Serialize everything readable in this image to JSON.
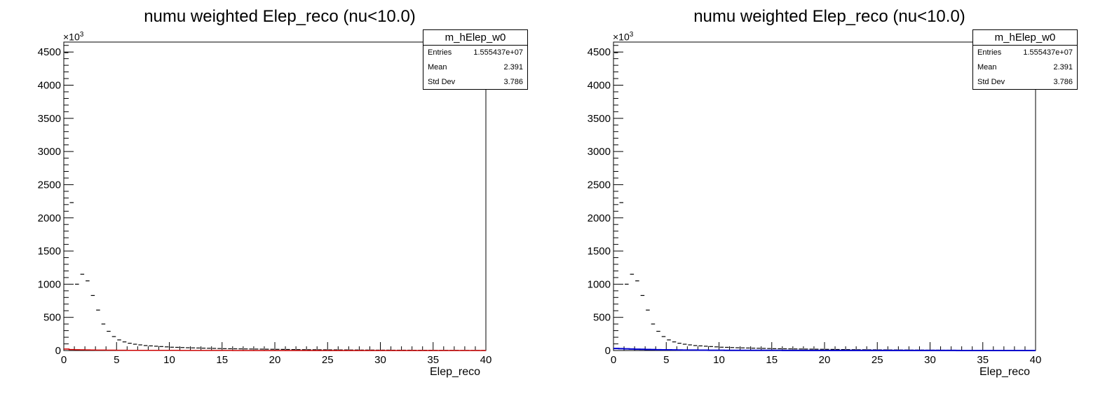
{
  "colors": {
    "frame": "#000000",
    "hist_main": "#000000",
    "overlay_left": "#cc0000",
    "overlay_right": "#0000cc"
  },
  "chart_data": [
    {
      "type": "histogram",
      "title": "numu weighted Elep_reco (nu<10.0)",
      "xlabel": "Elep_reco",
      "ylabel": "",
      "y_exponent_label": "×10",
      "y_exponent_power": "3",
      "xlim": [
        0,
        40
      ],
      "ylim": [
        0,
        4650
      ],
      "x_ticks": [
        "0",
        "5",
        "10",
        "15",
        "20",
        "25",
        "30",
        "35",
        "40"
      ],
      "y_ticks": [
        "0",
        "500",
        "1000",
        "1500",
        "2000",
        "2500",
        "3000",
        "3500",
        "4000",
        "4500"
      ],
      "grid": false,
      "stats_box": {
        "name": "m_hElep_w0",
        "entries_label": "Entries",
        "entries": "1.555437e+07",
        "mean_label": "Mean",
        "mean": "2.391",
        "stddev_label": "Std Dev",
        "stddev": "3.786"
      },
      "series": [
        {
          "bin_width": 0.5,
          "values": [
            4490,
            2230,
            1000,
            1150,
            1050,
            830,
            610,
            400,
            290,
            210,
            160,
            130,
            110,
            95,
            85,
            75,
            70,
            65,
            60,
            55,
            50,
            48,
            45,
            42,
            40,
            38,
            36,
            34,
            32,
            30,
            28,
            27,
            26,
            25,
            24,
            23,
            22,
            21,
            20,
            19,
            18,
            17,
            16,
            15,
            14,
            13,
            12,
            12,
            11,
            11,
            10,
            10,
            9,
            9,
            8,
            8,
            7,
            7,
            7,
            6,
            6,
            6,
            5,
            5,
            5,
            5,
            4,
            4,
            4,
            4,
            3,
            3,
            3,
            3,
            3,
            2,
            2,
            2,
            2,
            2
          ]
        },
        {
          "bin_width": 0.5,
          "values": [
            22,
            15,
            12,
            10,
            9,
            8,
            7,
            6,
            5,
            5,
            4,
            4,
            3,
            3,
            3,
            3,
            2,
            2,
            2,
            2,
            2,
            2,
            1,
            1,
            1,
            1,
            1,
            1,
            1,
            1,
            1,
            1,
            0,
            0,
            0,
            0,
            0,
            0,
            0,
            0,
            0,
            0,
            0,
            0,
            0,
            0,
            0,
            0,
            0,
            0,
            0,
            0,
            0,
            0,
            0,
            0,
            0,
            0,
            0,
            0,
            0,
            0,
            0,
            0,
            0,
            0,
            0,
            0,
            0,
            0,
            0,
            0,
            0,
            0,
            0,
            0,
            0,
            0,
            0,
            0
          ]
        }
      ]
    },
    {
      "type": "histogram",
      "title": "numu weighted Elep_reco (nu<10.0)",
      "xlabel": "Elep_reco",
      "ylabel": "",
      "y_exponent_label": "×10",
      "y_exponent_power": "3",
      "xlim": [
        0,
        40
      ],
      "ylim": [
        0,
        4650
      ],
      "x_ticks": [
        "0",
        "5",
        "10",
        "15",
        "20",
        "25",
        "30",
        "35",
        "40"
      ],
      "y_ticks": [
        "0",
        "500",
        "1000",
        "1500",
        "2000",
        "2500",
        "3000",
        "3500",
        "4000",
        "4500"
      ],
      "grid": false,
      "stats_box": {
        "name": "m_hElep_w0",
        "entries_label": "Entries",
        "entries": "1.555437e+07",
        "mean_label": "Mean",
        "mean": "2.391",
        "stddev_label": "Std Dev",
        "stddev": "3.786"
      },
      "series": [
        {
          "bin_width": 0.5,
          "values": [
            4490,
            2230,
            1000,
            1150,
            1050,
            830,
            610,
            400,
            290,
            210,
            160,
            130,
            110,
            95,
            85,
            75,
            70,
            65,
            60,
            55,
            50,
            48,
            45,
            42,
            40,
            38,
            36,
            34,
            32,
            30,
            28,
            27,
            26,
            25,
            24,
            23,
            22,
            21,
            20,
            19,
            18,
            17,
            16,
            15,
            14,
            13,
            12,
            12,
            11,
            11,
            10,
            10,
            9,
            9,
            8,
            8,
            7,
            7,
            7,
            6,
            6,
            6,
            5,
            5,
            5,
            5,
            4,
            4,
            4,
            4,
            3,
            3,
            3,
            3,
            3,
            2,
            2,
            2,
            2,
            2
          ]
        },
        {
          "bin_width": 0.5,
          "values": [
            30,
            28,
            25,
            22,
            20,
            18,
            16,
            14,
            12,
            11,
            10,
            9,
            8,
            7,
            6,
            6,
            5,
            5,
            4,
            4,
            4,
            3,
            3,
            3,
            3,
            2,
            2,
            2,
            2,
            2,
            2,
            2,
            1,
            1,
            1,
            1,
            1,
            1,
            1,
            1,
            1,
            1,
            1,
            1,
            1,
            1,
            1,
            1,
            1,
            1,
            1,
            1,
            1,
            1,
            1,
            1,
            1,
            1,
            1,
            1,
            1,
            1,
            1,
            1,
            1,
            0,
            0,
            0,
            0,
            0,
            0,
            0,
            0,
            0,
            0,
            0,
            0,
            0,
            0,
            0
          ]
        }
      ]
    }
  ]
}
